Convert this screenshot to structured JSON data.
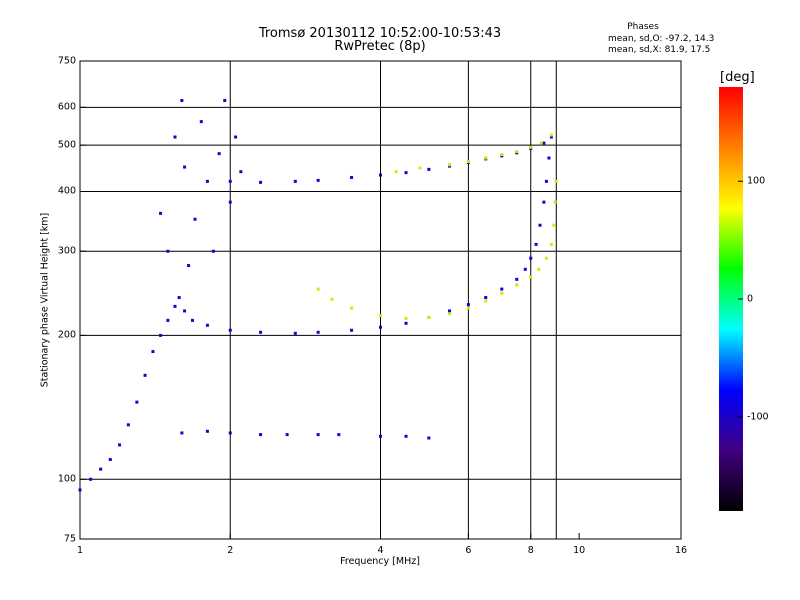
{
  "chart_data": {
    "type": "scatter",
    "title": "Tromsø 20130112 10:52:00-10:53:43",
    "subtitle": "RwPretec (8p)",
    "xlabel": "Frequency [MHz]",
    "ylabel": "Stationary phase Virtual Height [km]",
    "x_scale": "log",
    "y_scale": "log",
    "xlim": [
      1,
      16
    ],
    "ylim": [
      75,
      750
    ],
    "x_ticks": [
      1,
      2,
      4,
      6,
      8,
      10,
      16
    ],
    "x_grid": [
      2,
      4,
      6,
      8,
      9
    ],
    "y_ticks": [
      75,
      100,
      200,
      300,
      400,
      500,
      600,
      750
    ],
    "y_grid": [
      100,
      200,
      300,
      400,
      500,
      600
    ],
    "grid": true,
    "phases_header": "Phases",
    "stat_o": "mean, sd,O: -97.2, 14.3",
    "stat_x": "mean, sd,X:  81.9, 17.5",
    "colorbar": {
      "label": "[deg]",
      "range": [
        -180,
        180
      ],
      "ticks": [
        100,
        0,
        -100
      ],
      "colors": [
        "#ff0000",
        "#ff8000",
        "#ffff00",
        "#00ff00",
        "#00ffff",
        "#0000ff",
        "#400080",
        "#000000"
      ]
    },
    "traces": [
      {
        "id": "o_lower",
        "phase": -100,
        "points": [
          [
            1.58,
            240
          ],
          [
            1.62,
            225
          ],
          [
            1.68,
            215
          ],
          [
            1.8,
            210
          ],
          [
            2.0,
            205
          ],
          [
            2.3,
            203
          ],
          [
            2.7,
            202
          ],
          [
            3.0,
            203
          ],
          [
            3.5,
            205
          ],
          [
            4.0,
            208
          ],
          [
            4.5,
            212
          ],
          [
            5.0,
            218
          ],
          [
            5.5,
            225
          ],
          [
            6.0,
            232
          ],
          [
            6.5,
            240
          ],
          [
            7.0,
            250
          ],
          [
            7.5,
            262
          ],
          [
            7.8,
            275
          ],
          [
            8.0,
            290
          ],
          [
            8.2,
            310
          ],
          [
            8.35,
            340
          ],
          [
            8.5,
            380
          ],
          [
            8.6,
            420
          ],
          [
            8.7,
            470
          ],
          [
            8.8,
            520
          ]
        ]
      },
      {
        "id": "x_lower",
        "phase": 80,
        "points": [
          [
            3.0,
            250
          ],
          [
            3.2,
            238
          ],
          [
            3.5,
            228
          ],
          [
            4.0,
            220
          ],
          [
            4.5,
            217
          ],
          [
            5.0,
            218
          ],
          [
            5.5,
            222
          ],
          [
            6.0,
            228
          ],
          [
            6.5,
            236
          ],
          [
            7.0,
            245
          ],
          [
            7.5,
            255
          ],
          [
            8.0,
            265
          ],
          [
            8.3,
            275
          ],
          [
            8.6,
            290
          ],
          [
            8.8,
            310
          ],
          [
            8.9,
            340
          ],
          [
            8.95,
            380
          ],
          [
            9.0,
            420
          ]
        ]
      },
      {
        "id": "o_upper",
        "phase": -100,
        "points": [
          [
            2.0,
            420
          ],
          [
            2.3,
            418
          ],
          [
            2.7,
            420
          ],
          [
            3.0,
            422
          ],
          [
            3.5,
            428
          ],
          [
            4.0,
            433
          ],
          [
            4.5,
            438
          ],
          [
            5.0,
            445
          ],
          [
            5.5,
            452
          ],
          [
            6.0,
            460
          ],
          [
            6.5,
            468
          ],
          [
            7.0,
            475
          ],
          [
            7.5,
            482
          ],
          [
            8.0,
            492
          ],
          [
            8.5,
            505
          ]
        ]
      },
      {
        "id": "x_upper",
        "phase": 80,
        "points": [
          [
            4.3,
            440
          ],
          [
            4.8,
            448
          ],
          [
            5.5,
            455
          ],
          [
            6.0,
            462
          ],
          [
            6.5,
            470
          ],
          [
            7.0,
            478
          ],
          [
            7.5,
            485
          ],
          [
            8.0,
            495
          ],
          [
            8.4,
            505
          ],
          [
            8.8,
            525
          ]
        ]
      },
      {
        "id": "spread_f",
        "phase": -100,
        "points": [
          [
            1.45,
            360
          ],
          [
            1.5,
            300
          ],
          [
            1.55,
            520
          ],
          [
            1.6,
            620
          ],
          [
            1.62,
            450
          ],
          [
            1.65,
            280
          ],
          [
            1.7,
            350
          ],
          [
            1.75,
            560
          ],
          [
            1.8,
            420
          ],
          [
            1.85,
            300
          ],
          [
            1.9,
            480
          ],
          [
            1.95,
            620
          ],
          [
            2.0,
            380
          ],
          [
            2.05,
            520
          ],
          [
            2.1,
            440
          ]
        ]
      },
      {
        "id": "low_echoes",
        "phase": -100,
        "points": [
          [
            1.0,
            95
          ],
          [
            1.05,
            100
          ],
          [
            1.1,
            105
          ],
          [
            1.15,
            110
          ],
          [
            1.2,
            118
          ],
          [
            1.25,
            130
          ],
          [
            1.3,
            145
          ],
          [
            1.35,
            165
          ],
          [
            1.4,
            185
          ],
          [
            1.45,
            200
          ],
          [
            1.5,
            215
          ],
          [
            1.55,
            230
          ]
        ]
      },
      {
        "id": "es_layer",
        "phase": -100,
        "points": [
          [
            1.6,
            125
          ],
          [
            1.8,
            126
          ],
          [
            2.0,
            125
          ],
          [
            2.3,
            124
          ],
          [
            2.6,
            124
          ],
          [
            3.0,
            124
          ],
          [
            3.3,
            124
          ],
          [
            4.0,
            123
          ],
          [
            4.5,
            123
          ],
          [
            5.0,
            122
          ]
        ]
      }
    ]
  }
}
